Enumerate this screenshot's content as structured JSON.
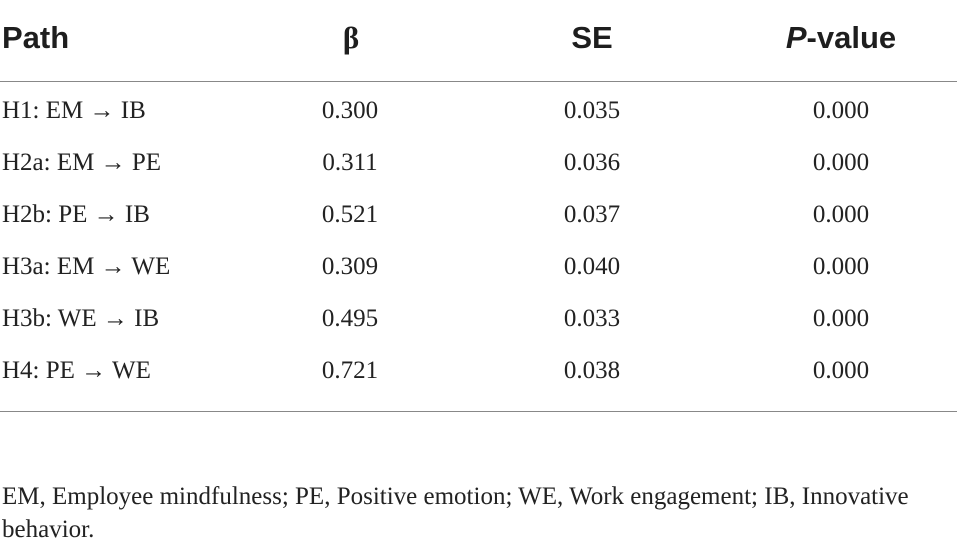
{
  "table": {
    "headers": {
      "path": "Path",
      "beta": "β",
      "se": "SE",
      "p_italic": "P",
      "p_rest": "-value"
    },
    "rows": [
      {
        "path": "H1: EM → IB",
        "beta": "0.300",
        "se": "0.035",
        "p": "0.000"
      },
      {
        "path": "H2a: EM → PE",
        "beta": "0.311",
        "se": "0.036",
        "p": "0.000"
      },
      {
        "path": "H2b: PE → IB",
        "beta": "0.521",
        "se": "0.037",
        "p": "0.000"
      },
      {
        "path": "H3a: EM → WE",
        "beta": "0.309",
        "se": "0.040",
        "p": "0.000"
      },
      {
        "path": "H3b: WE → IB",
        "beta": "0.495",
        "se": "0.033",
        "p": "0.000"
      },
      {
        "path": "H4: PE → WE",
        "beta": "0.721",
        "se": "0.038",
        "p": "0.000"
      }
    ]
  },
  "footnote": "EM, Employee mindfulness; PE, Positive emotion; WE, Work engagement; IB, Innovative behavior."
}
